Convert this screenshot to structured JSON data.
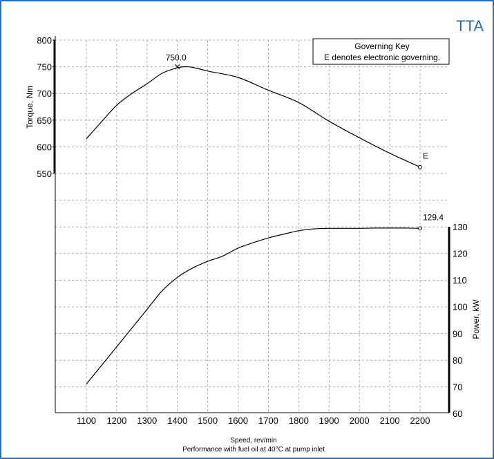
{
  "badge": {
    "text": "TTA",
    "color": "#2a6db5"
  },
  "frame_color": "#2a6db5",
  "governing_key": {
    "title": "Governing Key",
    "line": "E denotes electronic governing."
  },
  "chart_data": [
    {
      "type": "line",
      "name": "torque",
      "ylabel": "Torque, Nm",
      "ylim": [
        550,
        800
      ],
      "yticks": [
        550,
        600,
        650,
        700,
        750,
        800
      ],
      "axis_side": "left",
      "x": [
        1100,
        1150,
        1200,
        1250,
        1300,
        1350,
        1400,
        1425,
        1450,
        1500,
        1600,
        1700,
        1800,
        1900,
        2000,
        2100,
        2200
      ],
      "values": [
        615,
        647,
        678,
        700,
        718,
        738,
        748,
        750,
        749,
        742,
        730,
        706,
        683,
        648,
        617,
        588,
        562
      ],
      "annotations": [
        {
          "x": 1400,
          "y": 750,
          "text": "750.0",
          "marker": "x"
        },
        {
          "x": 2200,
          "y": 562,
          "text": "E",
          "marker": "circle"
        }
      ]
    },
    {
      "type": "line",
      "name": "power",
      "ylabel": "Power, kW",
      "ylim": [
        60,
        130
      ],
      "yticks": [
        60,
        70,
        80,
        90,
        100,
        110,
        120,
        130
      ],
      "axis_side": "right",
      "x": [
        1100,
        1150,
        1200,
        1250,
        1300,
        1350,
        1400,
        1450,
        1500,
        1550,
        1600,
        1650,
        1700,
        1750,
        1800,
        1850,
        1900,
        2000,
        2050,
        2100,
        2150,
        2200
      ],
      "values": [
        71,
        78,
        85,
        92,
        99,
        106,
        111,
        114.5,
        117,
        119,
        122,
        124,
        125.8,
        127.2,
        128.5,
        129.2,
        129.4,
        129.4,
        129.5,
        129.5,
        129.5,
        129.4
      ],
      "annotations": [
        {
          "x": 2200,
          "y": 129.4,
          "text": "129.4",
          "marker": "circle"
        }
      ]
    }
  ],
  "x_axis": {
    "ticks": [
      1100,
      1200,
      1300,
      1400,
      1500,
      1600,
      1700,
      1800,
      1900,
      2000,
      2100,
      2200
    ],
    "xlim": [
      1000,
      2250
    ],
    "label": "Speed, rev/min",
    "note": "Performance with fuel oil at 40°C at pump inlet"
  },
  "grid": true
}
